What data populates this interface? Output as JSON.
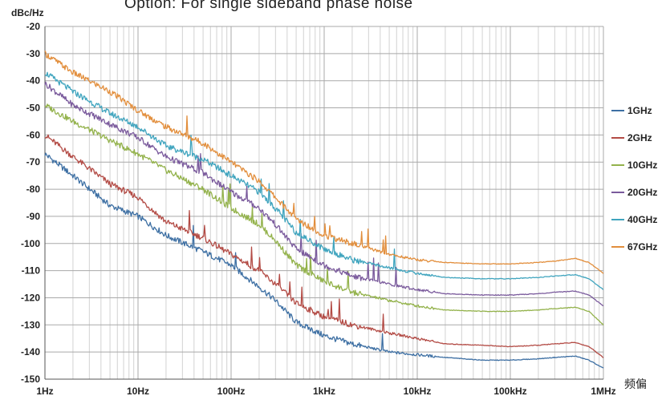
{
  "chart_data": {
    "type": "line",
    "title": "Option: For single sideband phase noise",
    "ylabel": "dBc/Hz",
    "xlabel": "频偏",
    "x_scale": "log",
    "xlim": [
      1,
      1000000
    ],
    "ylim": [
      -150,
      -20
    ],
    "grid": true,
    "legend_position": "right",
    "x_ticks": [
      {
        "value": 1,
        "label": "1Hz"
      },
      {
        "value": 10,
        "label": "10Hz"
      },
      {
        "value": 100,
        "label": "100Hz"
      },
      {
        "value": 1000,
        "label": "1kHz"
      },
      {
        "value": 10000,
        "label": "10kHz"
      },
      {
        "value": 100000,
        "label": "100kHz"
      },
      {
        "value": 1000000,
        "label": "1MHz"
      }
    ],
    "y_ticks": [
      -20,
      -30,
      -40,
      -50,
      -60,
      -70,
      -80,
      -90,
      -100,
      -110,
      -120,
      -130,
      -140,
      -150
    ],
    "series": [
      {
        "name": "1GHz",
        "color": "#3d6fa3",
        "points": [
          [
            1,
            -67
          ],
          [
            2,
            -75
          ],
          [
            5,
            -86
          ],
          [
            10,
            -90
          ],
          [
            20,
            -97
          ],
          [
            50,
            -103
          ],
          [
            100,
            -108
          ],
          [
            200,
            -116
          ],
          [
            300,
            -121
          ],
          [
            500,
            -129
          ],
          [
            1000,
            -134
          ],
          [
            2000,
            -137
          ],
          [
            5000,
            -140
          ],
          [
            10000,
            -141
          ],
          [
            20000,
            -142
          ],
          [
            50000,
            -143
          ],
          [
            100000,
            -143
          ],
          [
            200000,
            -142.5
          ],
          [
            300000,
            -142
          ],
          [
            500000,
            -141.5
          ],
          [
            700000,
            -143
          ],
          [
            1000000,
            -146
          ]
        ]
      },
      {
        "name": "2GHz",
        "color": "#b34b45",
        "points": [
          [
            1,
            -60
          ],
          [
            2,
            -68
          ],
          [
            5,
            -78
          ],
          [
            10,
            -83
          ],
          [
            20,
            -92
          ],
          [
            50,
            -98
          ],
          [
            100,
            -104
          ],
          [
            200,
            -110
          ],
          [
            300,
            -115
          ],
          [
            500,
            -122
          ],
          [
            1000,
            -127
          ],
          [
            2000,
            -130
          ],
          [
            5000,
            -133
          ],
          [
            10000,
            -135
          ],
          [
            20000,
            -137
          ],
          [
            50000,
            -137.5
          ],
          [
            100000,
            -138
          ],
          [
            200000,
            -137.5
          ],
          [
            300000,
            -137
          ],
          [
            500000,
            -136.5
          ],
          [
            700000,
            -138
          ],
          [
            1000000,
            -142
          ]
        ]
      },
      {
        "name": "10GHz",
        "color": "#93b24b",
        "points": [
          [
            1,
            -49
          ],
          [
            2,
            -55
          ],
          [
            5,
            -62
          ],
          [
            10,
            -67
          ],
          [
            20,
            -73
          ],
          [
            50,
            -80
          ],
          [
            100,
            -87
          ],
          [
            200,
            -93
          ],
          [
            300,
            -99
          ],
          [
            500,
            -108
          ],
          [
            1000,
            -114
          ],
          [
            2000,
            -118
          ],
          [
            5000,
            -121
          ],
          [
            10000,
            -123
          ],
          [
            20000,
            -124.5
          ],
          [
            50000,
            -125
          ],
          [
            100000,
            -125
          ],
          [
            200000,
            -124.5
          ],
          [
            300000,
            -124
          ],
          [
            500000,
            -123.5
          ],
          [
            700000,
            -125
          ],
          [
            1000000,
            -130
          ]
        ]
      },
      {
        "name": "20GHz",
        "color": "#7a5a9c",
        "points": [
          [
            1,
            -41
          ],
          [
            2,
            -49
          ],
          [
            5,
            -56
          ],
          [
            10,
            -61
          ],
          [
            20,
            -68
          ],
          [
            50,
            -74
          ],
          [
            100,
            -81
          ],
          [
            200,
            -87
          ],
          [
            300,
            -93
          ],
          [
            500,
            -102
          ],
          [
            1000,
            -108
          ],
          [
            2000,
            -112
          ],
          [
            5000,
            -115
          ],
          [
            10000,
            -117
          ],
          [
            20000,
            -118.5
          ],
          [
            50000,
            -119
          ],
          [
            100000,
            -119
          ],
          [
            200000,
            -118.5
          ],
          [
            300000,
            -118
          ],
          [
            500000,
            -117.5
          ],
          [
            700000,
            -119
          ],
          [
            1000000,
            -123
          ]
        ]
      },
      {
        "name": "40GHz",
        "color": "#3fa4be",
        "points": [
          [
            1,
            -37
          ],
          [
            2,
            -44
          ],
          [
            5,
            -52
          ],
          [
            10,
            -57
          ],
          [
            20,
            -64
          ],
          [
            50,
            -69
          ],
          [
            100,
            -75
          ],
          [
            200,
            -81
          ],
          [
            300,
            -87
          ],
          [
            500,
            -96
          ],
          [
            1000,
            -102
          ],
          [
            2000,
            -106
          ],
          [
            5000,
            -109
          ],
          [
            10000,
            -111
          ],
          [
            20000,
            -112.5
          ],
          [
            50000,
            -113
          ],
          [
            100000,
            -113
          ],
          [
            200000,
            -112.5
          ],
          [
            300000,
            -112
          ],
          [
            500000,
            -111.5
          ],
          [
            700000,
            -113
          ],
          [
            1000000,
            -117
          ]
        ]
      },
      {
        "name": "67GHz",
        "color": "#e28e3c",
        "points": [
          [
            1,
            -30
          ],
          [
            2,
            -37
          ],
          [
            5,
            -44
          ],
          [
            10,
            -51
          ],
          [
            20,
            -57
          ],
          [
            50,
            -63
          ],
          [
            100,
            -70
          ],
          [
            200,
            -77
          ],
          [
            300,
            -83
          ],
          [
            500,
            -91
          ],
          [
            1000,
            -97
          ],
          [
            2000,
            -100
          ],
          [
            5000,
            -104
          ],
          [
            10000,
            -106
          ],
          [
            20000,
            -107
          ],
          [
            50000,
            -107.5
          ],
          [
            100000,
            -107.5
          ],
          [
            200000,
            -107
          ],
          [
            300000,
            -106.5
          ],
          [
            500000,
            -105.5
          ],
          [
            700000,
            -107
          ],
          [
            1000000,
            -111
          ]
        ]
      }
    ]
  }
}
